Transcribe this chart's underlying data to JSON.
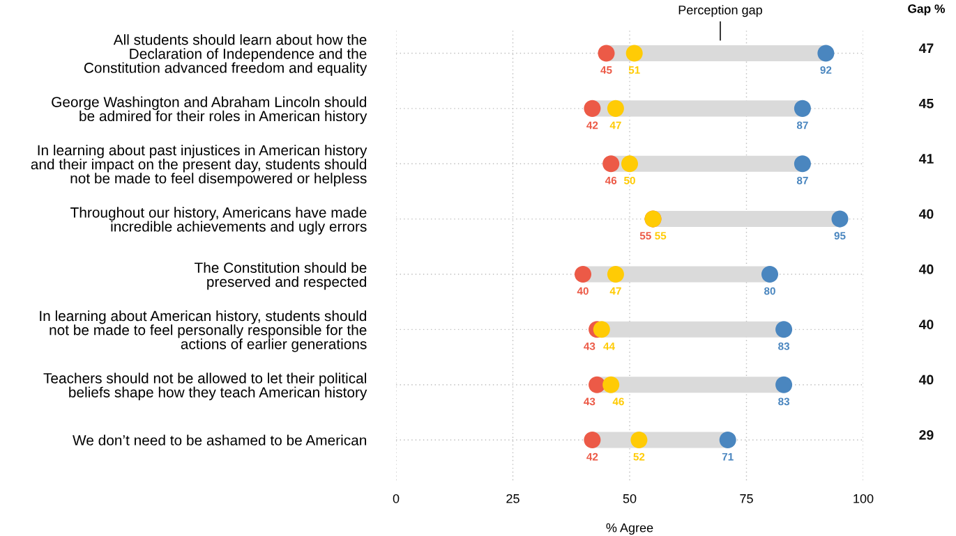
{
  "chart_data": {
    "type": "scatter",
    "orientation": "horizontal",
    "categories": [
      "All students should learn about how the\nDeclaration of Independence and the\nConstitution advanced freedom and equality",
      "George Washington and Abraham Lincoln should\nbe admired for their roles in American history",
      "In learning about past injustices in American history\nand their impact on the present day, students should\nnot be made to feel disempowered or helpless",
      "Throughout our history, Americans have made\nincredible achievements and ugly errors",
      "The Constitution should be\npreserved and respected",
      "In learning about American history, students should\nnot be made to feel personally responsible for the\nactions of earlier generations",
      "Teachers should not be allowed to let their political\nbeliefs shape how they teach American history",
      "We don’t need to be ashamed to be American"
    ],
    "series": [
      {
        "type": "bar",
        "color": "#dadada",
        "base": [
          45,
          42,
          46,
          55,
          40,
          43,
          43,
          42
        ],
        "values": [
          47,
          45,
          41,
          40,
          40,
          40,
          40,
          29
        ],
        "value_labels": [
          "47",
          "45",
          "41",
          "40",
          "40",
          "40",
          "40",
          "29"
        ]
      },
      {
        "color": "#ec5a47",
        "values": [
          45,
          42,
          46,
          55,
          40,
          43,
          43,
          42
        ]
      },
      {
        "color": "#ffcb05",
        "values": [
          51,
          47,
          50,
          55,
          47,
          44,
          46,
          52
        ]
      },
      {
        "color": "#4a86bf",
        "values": [
          92,
          87,
          87,
          95,
          80,
          83,
          83,
          71
        ]
      }
    ],
    "data_labels": true,
    "xlabel": "% Agree",
    "xlim": [
      0,
      100
    ],
    "xticks": [
      0,
      25,
      50,
      75,
      100
    ],
    "grid": true,
    "marker": "circle",
    "annotations": [
      "Perception gap",
      "Gap %"
    ]
  }
}
